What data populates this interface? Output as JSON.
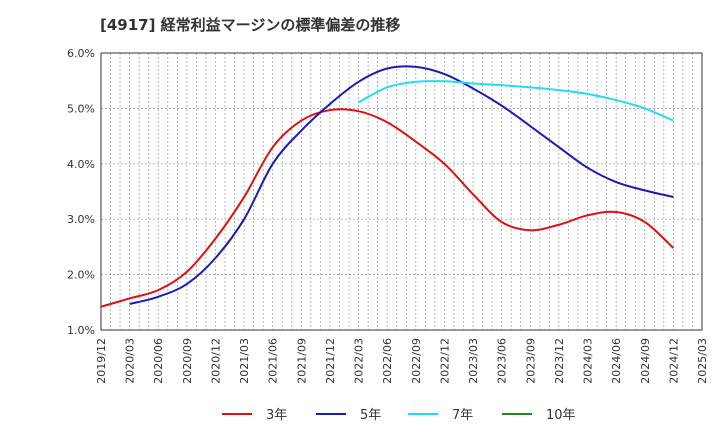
{
  "chart_data": {
    "type": "line",
    "title": "[4917]  経常利益マージンの標準偏差の推移",
    "xlabel": "",
    "ylabel": "",
    "ylim": [
      0.01,
      0.06
    ],
    "y_ticks": [
      "1.0%",
      "2.0%",
      "3.0%",
      "4.0%",
      "5.0%",
      "6.0%"
    ],
    "x_ticks": [
      "2019/12",
      "2020/03",
      "2020/06",
      "2020/09",
      "2020/12",
      "2021/03",
      "2021/06",
      "2021/09",
      "2021/12",
      "2022/03",
      "2022/06",
      "2022/09",
      "2022/12",
      "2023/03",
      "2023/06",
      "2023/09",
      "2023/12",
      "2024/03",
      "2024/06",
      "2024/09",
      "2024/12",
      "2025/03"
    ],
    "grid": true,
    "legend_position": "bottom",
    "series": [
      {
        "name": "3年",
        "color": "#dd1111",
        "x": [
          "2019/12",
          "2020/03",
          "2020/06",
          "2020/09",
          "2020/12",
          "2021/03",
          "2021/06",
          "2021/09",
          "2021/12",
          "2022/03",
          "2022/06",
          "2022/09",
          "2022/12",
          "2023/03",
          "2023/06",
          "2023/09",
          "2023/12",
          "2024/03",
          "2024/06",
          "2024/09",
          "2024/12"
        ],
        "values": [
          0.0142,
          0.0157,
          0.0172,
          0.0205,
          0.0265,
          0.034,
          0.043,
          0.0478,
          0.0497,
          0.0495,
          0.0475,
          0.044,
          0.04,
          0.0345,
          0.0295,
          0.028,
          0.029,
          0.0307,
          0.0313,
          0.0295,
          0.0248
        ]
      },
      {
        "name": "5年",
        "color": "#1a1ab8",
        "x": [
          "2020/03",
          "2020/06",
          "2020/09",
          "2020/12",
          "2021/03",
          "2021/06",
          "2021/09",
          "2021/12",
          "2022/03",
          "2022/06",
          "2022/09",
          "2022/12",
          "2023/03",
          "2023/06",
          "2023/09",
          "2023/12",
          "2024/03",
          "2024/06",
          "2024/09",
          "2024/12"
        ],
        "values": [
          0.0147,
          0.016,
          0.0183,
          0.023,
          0.03,
          0.04,
          0.046,
          0.0508,
          0.0548,
          0.0572,
          0.0575,
          0.0562,
          0.0536,
          0.0505,
          0.0468,
          0.043,
          0.0393,
          0.0367,
          0.0352,
          0.034
        ]
      },
      {
        "name": "7年",
        "color": "#22ddee",
        "x": [
          "2022/03",
          "2022/06",
          "2022/09",
          "2022/12",
          "2023/03",
          "2023/06",
          "2023/09",
          "2023/12",
          "2024/03",
          "2024/06",
          "2024/09",
          "2024/12"
        ],
        "values": [
          0.0511,
          0.0538,
          0.0548,
          0.0549,
          0.0545,
          0.0542,
          0.0538,
          0.0533,
          0.0526,
          0.0515,
          0.05,
          0.0478
        ]
      },
      {
        "name": "10年",
        "color": "#228822",
        "x": [],
        "values": []
      }
    ]
  }
}
